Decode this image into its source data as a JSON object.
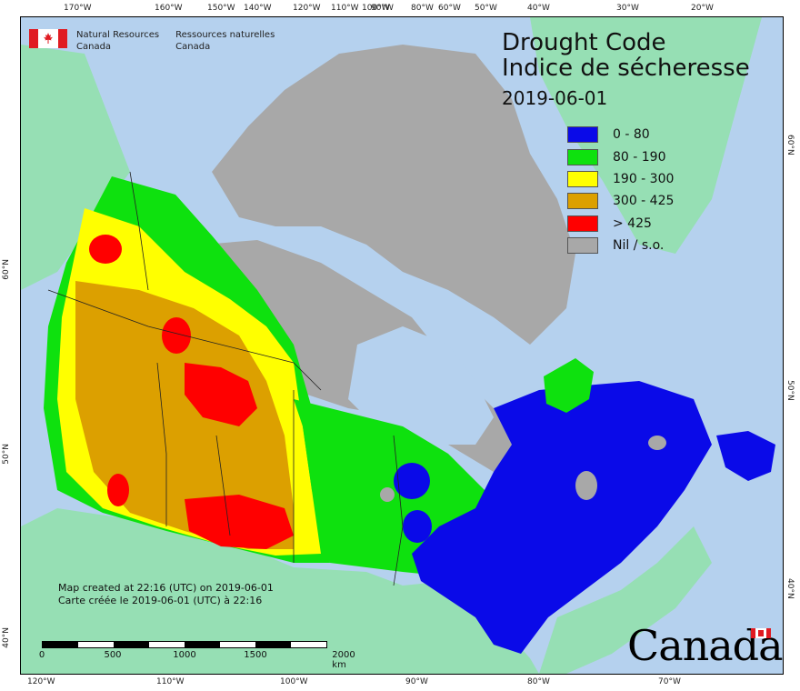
{
  "title": {
    "en": "Drought Code",
    "fr": "Indice de sécheresse",
    "date": "2019-06-01"
  },
  "agency": {
    "en_line1": "Natural Resources",
    "en_line2": "Canada",
    "fr_line1": "Ressources naturelles",
    "fr_line2": "Canada"
  },
  "legend": [
    {
      "label": "0 - 80",
      "color": "#0a0ae8"
    },
    {
      "label": "80 - 190",
      "color": "#0ee10e"
    },
    {
      "label": "190 - 300",
      "color": "#ffff00"
    },
    {
      "label": "300 - 425",
      "color": "#dca000"
    },
    {
      "label": "> 425",
      "color": "#ff0000"
    },
    {
      "label": "Nil / s.o.",
      "color": "#a8a8a8"
    }
  ],
  "credits": {
    "en": "Map created at 22:16 (UTC) on 2019-06-01",
    "fr": "Carte créée le 2019-06-01 (UTC) à 22:16"
  },
  "scale": {
    "labels": [
      "0",
      "500",
      "1000",
      "1500",
      "2000 km"
    ]
  },
  "graticule": {
    "top": [
      "170°W",
      "160°W",
      "150°W",
      "140°W",
      "120°W",
      "110°W",
      "100°W",
      "90°W",
      "80°W",
      "60°W",
      "50°W",
      "40°W",
      "30°W",
      "20°W"
    ],
    "bottom": [
      "120°W",
      "110°W",
      "100°W",
      "90°W",
      "80°W",
      "70°W"
    ],
    "left": [
      "60°N",
      "50°N",
      "40°N"
    ],
    "right": [
      "60°N",
      "50°N",
      "40°N"
    ]
  },
  "wordmark": "Canada",
  "colors": {
    "ocean": "#b5d1ee",
    "land_outside": "#96dfb4",
    "nil": "#a8a8a8"
  }
}
